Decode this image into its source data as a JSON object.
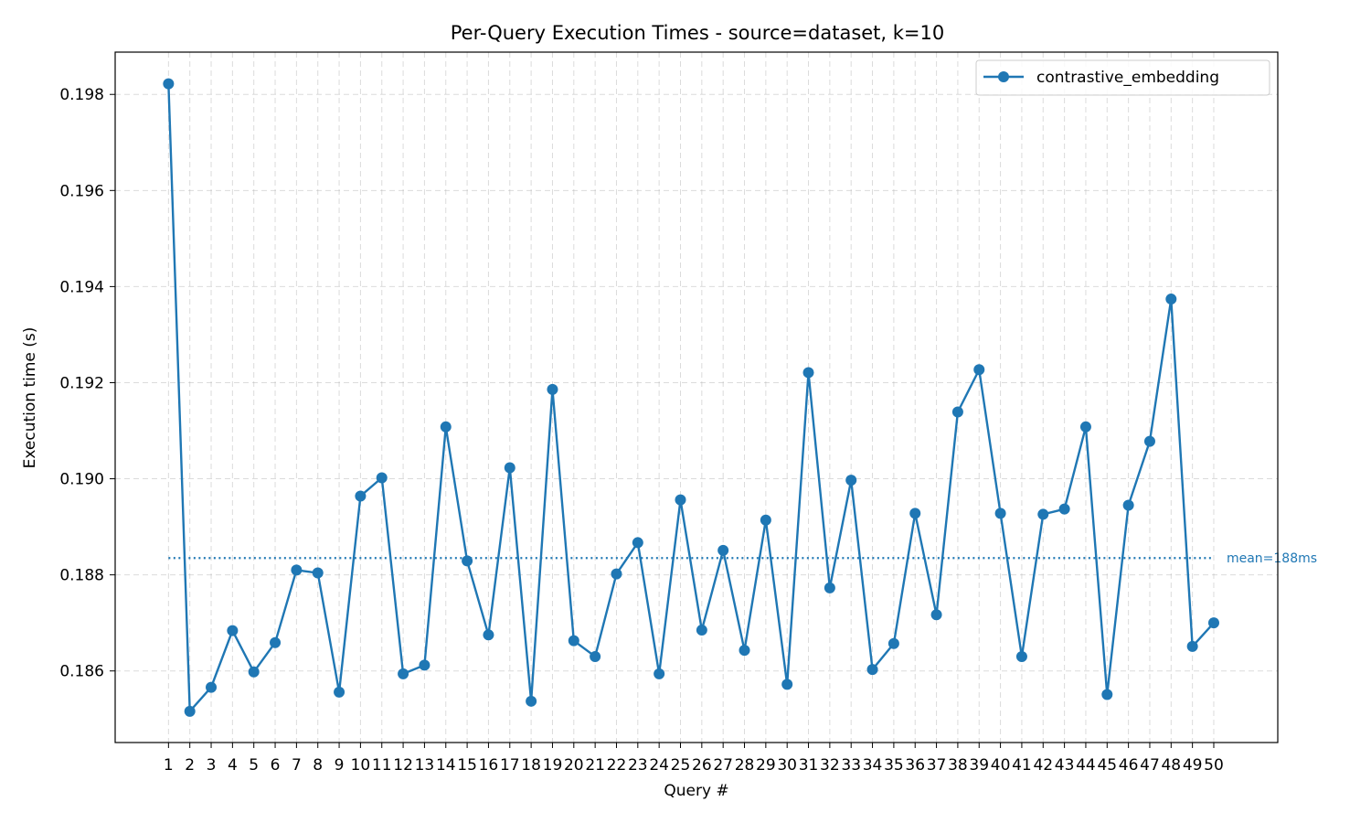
{
  "chart_data": {
    "type": "line",
    "title": "Per-Query Execution Times - source=dataset, k=10",
    "xlabel": "Query #",
    "ylabel": "Execution time (s)",
    "x": [
      1,
      2,
      3,
      4,
      5,
      6,
      7,
      8,
      9,
      10,
      11,
      12,
      13,
      14,
      15,
      16,
      17,
      18,
      19,
      20,
      21,
      22,
      23,
      24,
      25,
      26,
      27,
      28,
      29,
      30,
      31,
      32,
      33,
      34,
      35,
      36,
      37,
      38,
      39,
      40,
      41,
      42,
      43,
      44,
      45,
      46,
      47,
      48,
      49,
      50
    ],
    "x_tick_labels": [
      "1",
      "2",
      "3",
      "4",
      "5",
      "6",
      "7",
      "8",
      "9",
      "10",
      "11",
      "12",
      "13",
      "14",
      "15",
      "16",
      "17",
      "18",
      "19",
      "20",
      "21",
      "22",
      "23",
      "24",
      "25",
      "26",
      "27",
      "28",
      "29",
      "30",
      "31",
      "32",
      "33",
      "34",
      "35",
      "36",
      "37",
      "38",
      "39",
      "40",
      "41",
      "42",
      "43",
      "44",
      "45",
      "46",
      "47",
      "48",
      "49",
      "50"
    ],
    "xlim": [
      -1.5,
      53
    ],
    "ylim": [
      0.18451,
      0.19888
    ],
    "y_ticks": [
      0.186,
      0.188,
      0.19,
      0.192,
      0.194,
      0.196,
      0.198
    ],
    "y_tick_labels": [
      "0.186",
      "0.188",
      "0.190",
      "0.192",
      "0.194",
      "0.196",
      "0.198"
    ],
    "grid": true,
    "legend_position": "top-right",
    "series": [
      {
        "name": "contrastive_embedding",
        "color": "#1f77b4",
        "marker": "circle",
        "values": [
          0.19822,
          0.18516,
          0.18566,
          0.18684,
          0.18598,
          0.18659,
          0.1881,
          0.18804,
          0.18556,
          0.18964,
          0.19002,
          0.18594,
          0.18612,
          0.19108,
          0.18829,
          0.18675,
          0.19023,
          0.18537,
          0.19186,
          0.18663,
          0.1863,
          0.18802,
          0.18867,
          0.18594,
          0.18956,
          0.18685,
          0.18851,
          0.18643,
          0.18914,
          0.18572,
          0.19221,
          0.18773,
          0.18997,
          0.18603,
          0.18657,
          0.18928,
          0.18717,
          0.19139,
          0.19227,
          0.18928,
          0.1863,
          0.18926,
          0.18937,
          0.19108,
          0.18551,
          0.18945,
          0.19078,
          0.19374,
          0.18651,
          0.187
        ]
      }
    ],
    "annotations": [
      {
        "type": "hline",
        "y": 0.18835,
        "style": "dotted",
        "color": "#1f77b4",
        "label": "mean=188ms"
      }
    ]
  }
}
